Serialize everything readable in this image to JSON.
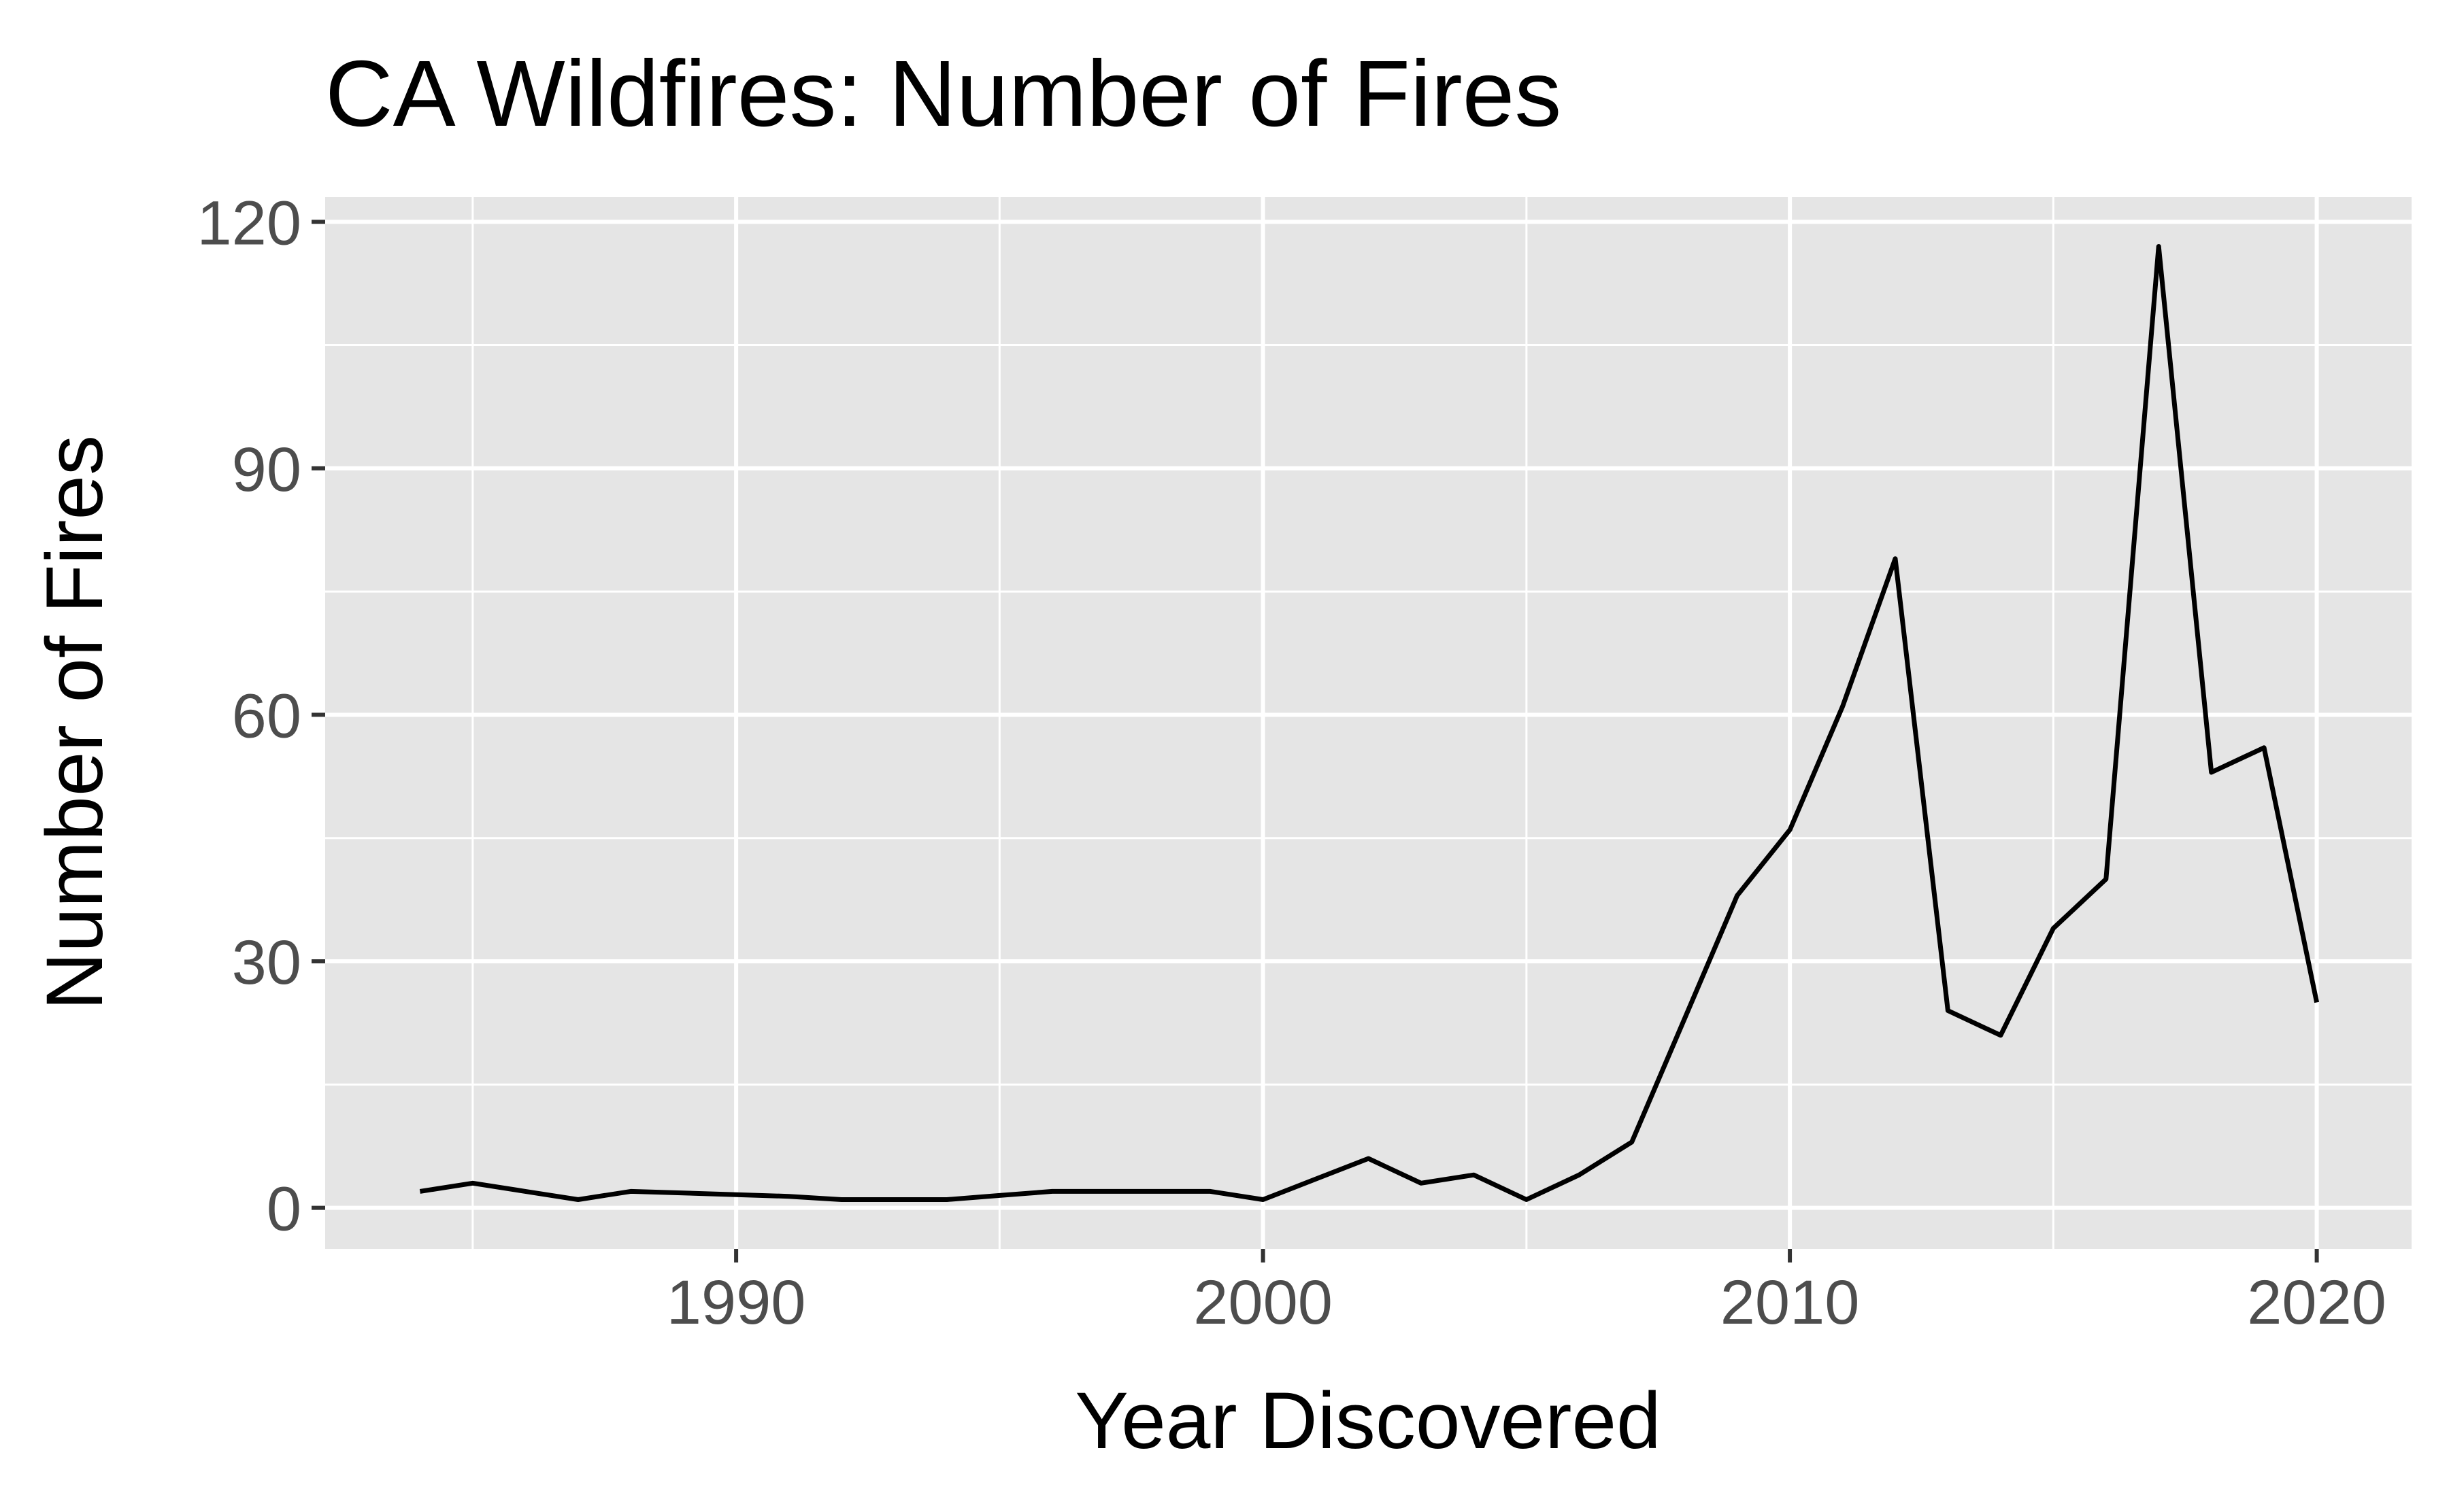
{
  "chart_data": {
    "type": "line",
    "title": "CA Wildfires: Number of Fires",
    "xlabel": "Year Discovered",
    "ylabel": "Number of Fires",
    "xlim": [
      1982.2,
      2021.8
    ],
    "ylim": [
      -5,
      123
    ],
    "x_ticks": [
      1990,
      2000,
      2010,
      2020
    ],
    "x_minor_ticks": [
      1985,
      1995,
      2005,
      2015
    ],
    "y_ticks": [
      0,
      30,
      60,
      90,
      120
    ],
    "y_minor_ticks": [
      15,
      45,
      75,
      105
    ],
    "grid": true,
    "legend": "none",
    "colors": {
      "panel": "#e5e5e5",
      "grid": "#ffffff",
      "line": "#000000",
      "tick_text": "#4d4d4d",
      "tick_mark": "#333333"
    },
    "series": [
      {
        "x": [
          1984,
          1985,
          1986,
          1987,
          1988,
          1989,
          1990,
          1991,
          1992,
          1993,
          1994,
          1995,
          1996,
          1997,
          1998,
          1999,
          2000,
          2001,
          2002,
          2003,
          2004,
          2005,
          2006,
          2007,
          2008,
          2009,
          2010,
          2011,
          2012,
          2013,
          2014,
          2015,
          2016,
          2017,
          2018,
          2019,
          2020
        ],
        "y": [
          2,
          3,
          2,
          1,
          2,
          1.8,
          1.6,
          1.4,
          1,
          1,
          1,
          1.5,
          2,
          2,
          2,
          2,
          1,
          3.5,
          6,
          3,
          4,
          1,
          4,
          8,
          23,
          38,
          46,
          61,
          79,
          24,
          21,
          34,
          40,
          117,
          53,
          56,
          25
        ]
      }
    ]
  }
}
